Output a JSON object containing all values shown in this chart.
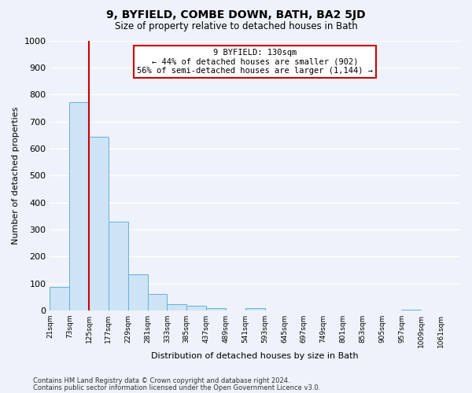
{
  "title": "9, BYFIELD, COMBE DOWN, BATH, BA2 5JD",
  "subtitle": "Size of property relative to detached houses in Bath",
  "xlabel": "Distribution of detached houses by size in Bath",
  "ylabel": "Number of detached properties",
  "bar_color": "#cce4f5",
  "bar_edge_color": "#6aaed6",
  "bin_left_edges": [
    21,
    73,
    125,
    177,
    229,
    281,
    333,
    385,
    437,
    489,
    541,
    593,
    645,
    697,
    749,
    801,
    853,
    905,
    957,
    1009
  ],
  "bin_labels": [
    "21sqm",
    "73sqm",
    "125sqm",
    "177sqm",
    "229sqm",
    "281sqm",
    "333sqm",
    "385sqm",
    "437sqm",
    "489sqm",
    "541sqm",
    "593sqm",
    "645sqm",
    "697sqm",
    "749sqm",
    "801sqm",
    "853sqm",
    "905sqm",
    "957sqm",
    "1009sqm",
    "1061sqm"
  ],
  "counts": [
    87,
    770,
    643,
    330,
    134,
    60,
    24,
    16,
    10,
    0,
    8,
    0,
    0,
    0,
    0,
    0,
    0,
    0,
    4,
    0
  ],
  "bin_width": 52,
  "property_line_x": 125,
  "xlim_left": 21,
  "xlim_right": 1113,
  "ylim": [
    0,
    1000
  ],
  "yticks": [
    0,
    100,
    200,
    300,
    400,
    500,
    600,
    700,
    800,
    900,
    1000
  ],
  "annotation_title": "9 BYFIELD: 130sqm",
  "annotation_line1": "← 44% of detached houses are smaller (902)",
  "annotation_line2": "56% of semi-detached houses are larger (1,144) →",
  "annotation_box_color": "#ffffff",
  "annotation_box_edge_color": "#cc0000",
  "vline_color": "#cc0000",
  "footer1": "Contains HM Land Registry data © Crown copyright and database right 2024.",
  "footer2": "Contains public sector information licensed under the Open Government Licence v3.0.",
  "background_color": "#eef2fa",
  "grid_color": "#ffffff",
  "title_fontsize": 10,
  "subtitle_fontsize": 8.5,
  "ylabel_fontsize": 8,
  "xlabel_fontsize": 8,
  "tick_fontsize": 6.5,
  "ytick_fontsize": 8
}
